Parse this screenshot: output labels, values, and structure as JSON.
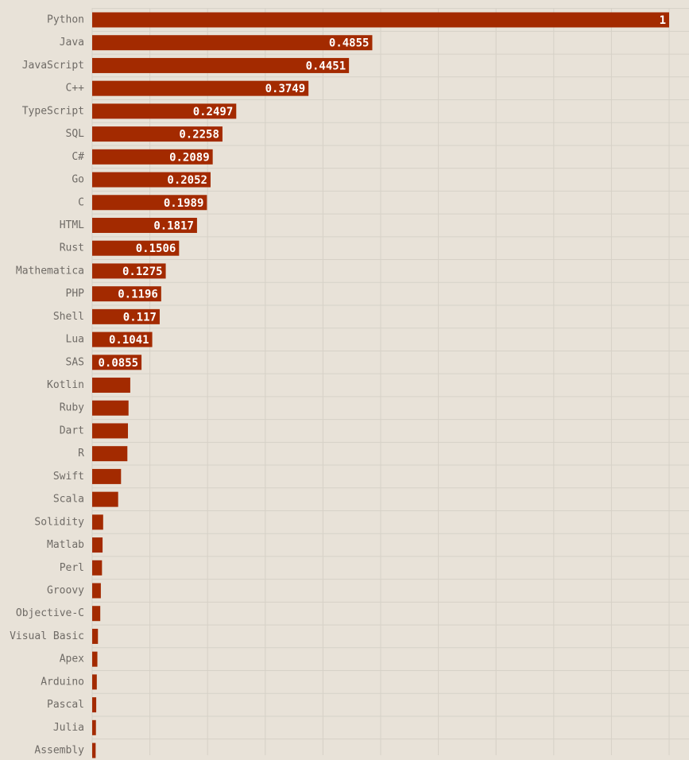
{
  "chart_data": {
    "type": "bar",
    "orientation": "horizontal",
    "title": "",
    "xlabel": "",
    "ylabel": "",
    "xlim": [
      0,
      1
    ],
    "grid": true,
    "bar_color": "#a32a00",
    "background_color": "#e8e2d8",
    "categories": [
      "Python",
      "Java",
      "JavaScript",
      "C++",
      "TypeScript",
      "SQL",
      "C#",
      "Go",
      "C",
      "HTML",
      "Rust",
      "Mathematica",
      "PHP",
      "Shell",
      "Lua",
      "SAS",
      "Kotlin",
      "Ruby",
      "Dart",
      "R",
      "Swift",
      "Scala",
      "Solidity",
      "Matlab",
      "Perl",
      "Groovy",
      "Objective-C",
      "Visual Basic",
      "Apex",
      "Arduino",
      "Pascal",
      "Julia",
      "Assembly"
    ],
    "values": [
      1,
      0.4855,
      0.4451,
      0.3749,
      0.2497,
      0.2258,
      0.2089,
      0.2052,
      0.1989,
      0.1817,
      0.1506,
      0.1275,
      0.1196,
      0.117,
      0.1041,
      0.0855,
      0.066,
      0.063,
      0.062,
      0.061,
      0.05,
      0.045,
      0.019,
      0.018,
      0.017,
      0.015,
      0.014,
      0.01,
      0.009,
      0.008,
      0.007,
      0.0065,
      0.006
    ],
    "data_labels": [
      "1",
      "0.4855",
      "0.4451",
      "0.3749",
      "0.2497",
      "0.2258",
      "0.2089",
      "0.2052",
      "0.1989",
      "0.1817",
      "0.1506",
      "0.1275",
      "0.1196",
      "0.117",
      "0.1041",
      "0.0855",
      "",
      "",
      "",
      "",
      "",
      "",
      "",
      "",
      "",
      "",
      "",
      "",
      "",
      "",
      "",
      "",
      ""
    ]
  }
}
